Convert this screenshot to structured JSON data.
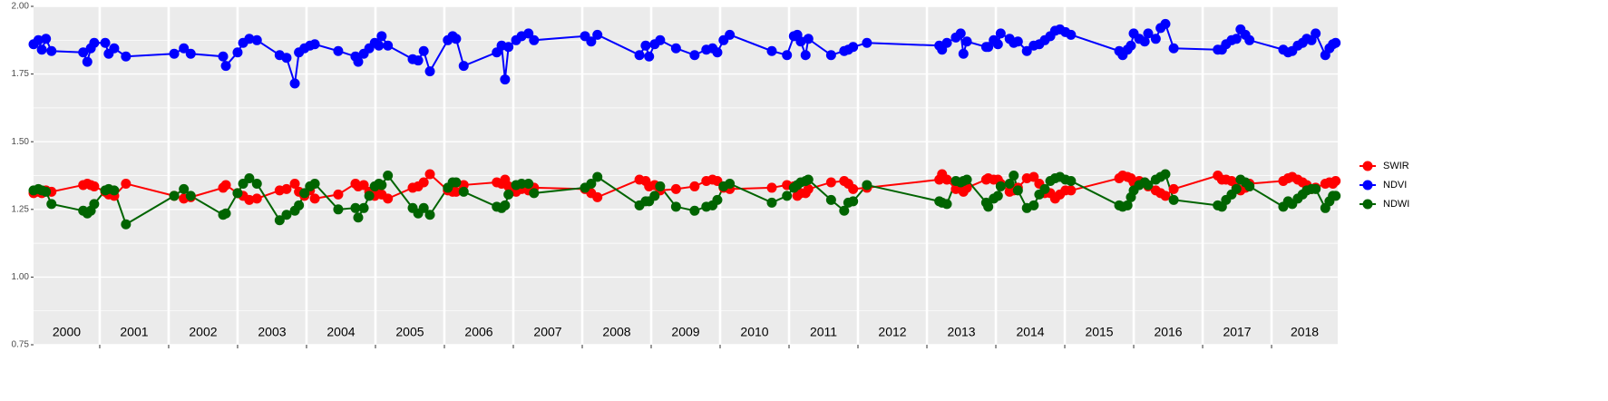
{
  "chart_data": {
    "type": "line",
    "x": [
      2000.04,
      2000.11,
      2000.16,
      2000.22,
      2000.3,
      2000.76,
      2000.82,
      2000.87,
      2000.92,
      2001.08,
      2001.13,
      2001.21,
      2001.38,
      2002.08,
      2002.22,
      2002.32,
      2002.79,
      2002.83,
      2003.0,
      2003.08,
      2003.17,
      2003.28,
      2003.61,
      2003.71,
      2003.83,
      2003.89,
      2003.97,
      2004.05,
      2004.12,
      2004.46,
      2004.71,
      2004.75,
      2004.83,
      2004.91,
      2004.99,
      2005.05,
      2005.09,
      2005.18,
      2005.54,
      2005.62,
      2005.7,
      2005.79,
      2006.05,
      2006.12,
      2006.17,
      2006.28,
      2006.76,
      2006.83,
      2006.88,
      2006.93,
      2007.04,
      2007.12,
      2007.22,
      2007.3,
      2008.04,
      2008.13,
      2008.22,
      2008.83,
      2008.92,
      2008.97,
      2009.05,
      2009.13,
      2009.36,
      2009.63,
      2009.8,
      2009.89,
      2009.96,
      2010.05,
      2010.14,
      2010.75,
      2010.97,
      2011.07,
      2011.12,
      2011.17,
      2011.24,
      2011.28,
      2011.61,
      2011.8,
      2011.86,
      2011.93,
      2012.13,
      2013.18,
      2013.22,
      2013.29,
      2013.42,
      2013.49,
      2013.53,
      2013.58,
      2013.86,
      2013.89,
      2013.97,
      2014.03,
      2014.07,
      2014.2,
      2014.26,
      2014.32,
      2014.45,
      2014.55,
      2014.63,
      2014.71,
      2014.79,
      2014.86,
      2014.93,
      2015.01,
      2015.09,
      2015.79,
      2015.84,
      2015.91,
      2015.96,
      2016.0,
      2016.08,
      2016.16,
      2016.21,
      2016.32,
      2016.39,
      2016.46,
      2016.58,
      2017.22,
      2017.28,
      2017.34,
      2017.42,
      2017.49,
      2017.55,
      2017.62,
      2017.68,
      2018.17,
      2018.24,
      2018.3,
      2018.38,
      2018.45,
      2018.51,
      2018.58,
      2018.64,
      2018.78,
      2018.84,
      2018.89,
      2018.93
    ],
    "series": [
      {
        "name": "SWIR",
        "color": "#ff0000",
        "values": [
          1.31,
          1.315,
          1.31,
          1.32,
          1.315,
          1.34,
          1.345,
          1.34,
          1.335,
          1.315,
          1.305,
          1.3,
          1.345,
          1.3,
          1.29,
          1.295,
          1.33,
          1.34,
          1.31,
          1.3,
          1.285,
          1.29,
          1.32,
          1.325,
          1.345,
          1.315,
          1.3,
          1.32,
          1.29,
          1.305,
          1.345,
          1.335,
          1.34,
          1.315,
          1.3,
          1.31,
          1.305,
          1.29,
          1.33,
          1.335,
          1.35,
          1.38,
          1.32,
          1.315,
          1.315,
          1.34,
          1.35,
          1.345,
          1.36,
          1.335,
          1.315,
          1.325,
          1.32,
          1.33,
          1.325,
          1.31,
          1.295,
          1.36,
          1.355,
          1.335,
          1.34,
          1.32,
          1.325,
          1.335,
          1.355,
          1.36,
          1.355,
          1.33,
          1.325,
          1.33,
          1.34,
          1.335,
          1.3,
          1.31,
          1.31,
          1.325,
          1.35,
          1.355,
          1.345,
          1.325,
          1.33,
          1.36,
          1.38,
          1.36,
          1.325,
          1.33,
          1.315,
          1.33,
          1.36,
          1.365,
          1.36,
          1.36,
          1.345,
          1.315,
          1.32,
          1.33,
          1.365,
          1.37,
          1.345,
          1.31,
          1.31,
          1.29,
          1.305,
          1.32,
          1.32,
          1.365,
          1.375,
          1.37,
          1.365,
          1.35,
          1.355,
          1.35,
          1.335,
          1.32,
          1.31,
          1.3,
          1.325,
          1.375,
          1.36,
          1.36,
          1.355,
          1.33,
          1.32,
          1.33,
          1.345,
          1.355,
          1.365,
          1.37,
          1.36,
          1.35,
          1.34,
          1.325,
          1.33,
          1.345,
          1.35,
          1.345,
          1.355
        ]
      },
      {
        "name": "NDVI",
        "color": "#0000ff",
        "values": [
          1.86,
          1.875,
          1.84,
          1.88,
          1.835,
          1.83,
          1.795,
          1.845,
          1.865,
          1.865,
          1.825,
          1.845,
          1.815,
          1.825,
          1.845,
          1.825,
          1.815,
          1.78,
          1.83,
          1.865,
          1.88,
          1.875,
          1.82,
          1.81,
          1.715,
          1.83,
          1.845,
          1.855,
          1.86,
          1.835,
          1.815,
          1.795,
          1.825,
          1.845,
          1.865,
          1.855,
          1.89,
          1.855,
          1.805,
          1.8,
          1.835,
          1.76,
          1.875,
          1.89,
          1.88,
          1.78,
          1.83,
          1.855,
          1.73,
          1.85,
          1.875,
          1.89,
          1.9,
          1.875,
          1.89,
          1.87,
          1.895,
          1.82,
          1.855,
          1.815,
          1.86,
          1.875,
          1.845,
          1.82,
          1.84,
          1.845,
          1.83,
          1.875,
          1.895,
          1.835,
          1.82,
          1.89,
          1.895,
          1.87,
          1.82,
          1.88,
          1.82,
          1.835,
          1.84,
          1.85,
          1.865,
          1.855,
          1.84,
          1.865,
          1.885,
          1.9,
          1.825,
          1.87,
          1.85,
          1.85,
          1.875,
          1.86,
          1.9,
          1.88,
          1.865,
          1.87,
          1.835,
          1.855,
          1.86,
          1.875,
          1.89,
          1.91,
          1.915,
          1.905,
          1.895,
          1.835,
          1.82,
          1.84,
          1.855,
          1.9,
          1.88,
          1.87,
          1.9,
          1.88,
          1.92,
          1.935,
          1.845,
          1.84,
          1.84,
          1.86,
          1.875,
          1.88,
          1.915,
          1.895,
          1.875,
          1.84,
          1.83,
          1.835,
          1.855,
          1.865,
          1.88,
          1.875,
          1.9,
          1.82,
          1.845,
          1.86,
          1.865
        ]
      },
      {
        "name": "NDWI",
        "color": "#006400",
        "values": [
          1.32,
          1.325,
          1.32,
          1.315,
          1.27,
          1.245,
          1.235,
          1.245,
          1.27,
          1.32,
          1.325,
          1.32,
          1.195,
          1.3,
          1.325,
          1.3,
          1.23,
          1.235,
          1.31,
          1.345,
          1.365,
          1.345,
          1.21,
          1.23,
          1.245,
          1.265,
          1.31,
          1.335,
          1.345,
          1.25,
          1.255,
          1.22,
          1.255,
          1.3,
          1.335,
          1.345,
          1.34,
          1.375,
          1.255,
          1.235,
          1.255,
          1.23,
          1.33,
          1.35,
          1.35,
          1.315,
          1.26,
          1.255,
          1.265,
          1.305,
          1.34,
          1.345,
          1.345,
          1.31,
          1.33,
          1.345,
          1.37,
          1.265,
          1.28,
          1.28,
          1.3,
          1.335,
          1.26,
          1.245,
          1.26,
          1.265,
          1.285,
          1.335,
          1.345,
          1.275,
          1.3,
          1.33,
          1.34,
          1.35,
          1.355,
          1.36,
          1.285,
          1.245,
          1.275,
          1.28,
          1.34,
          1.28,
          1.275,
          1.27,
          1.355,
          1.35,
          1.355,
          1.36,
          1.275,
          1.26,
          1.29,
          1.3,
          1.335,
          1.345,
          1.375,
          1.32,
          1.255,
          1.265,
          1.305,
          1.325,
          1.355,
          1.365,
          1.37,
          1.36,
          1.355,
          1.265,
          1.26,
          1.265,
          1.295,
          1.32,
          1.34,
          1.35,
          1.34,
          1.36,
          1.37,
          1.38,
          1.285,
          1.265,
          1.26,
          1.285,
          1.305,
          1.325,
          1.36,
          1.35,
          1.335,
          1.26,
          1.28,
          1.27,
          1.29,
          1.305,
          1.32,
          1.325,
          1.325,
          1.255,
          1.28,
          1.3,
          1.3
        ]
      }
    ],
    "xlim": [
      2000.04,
      2018.96
    ],
    "xticks": [
      2001,
      2002,
      2003,
      2004,
      2005,
      2006,
      2007,
      2008,
      2009,
      2010,
      2011,
      2012,
      2013,
      2014,
      2015,
      2016,
      2017,
      2018
    ],
    "year_labels": [
      "2000",
      "2001",
      "2002",
      "2003",
      "2004",
      "2005",
      "2006",
      "2007",
      "2008",
      "2009",
      "2010",
      "2011",
      "2012",
      "2013",
      "2014",
      "2015",
      "2016",
      "2017",
      "2018"
    ],
    "ylim": [
      0.75,
      2.0
    ],
    "yticks": [
      {
        "value": 0.75,
        "label": "0.75"
      },
      {
        "value": 1.0,
        "label": "1.00"
      },
      {
        "value": 1.25,
        "label": "1.25"
      },
      {
        "value": 1.5,
        "label": "1.50"
      },
      {
        "value": 1.75,
        "label": "1.75"
      },
      {
        "value": 2.0,
        "label": "2.00"
      }
    ],
    "grid": true,
    "legend": "right"
  }
}
